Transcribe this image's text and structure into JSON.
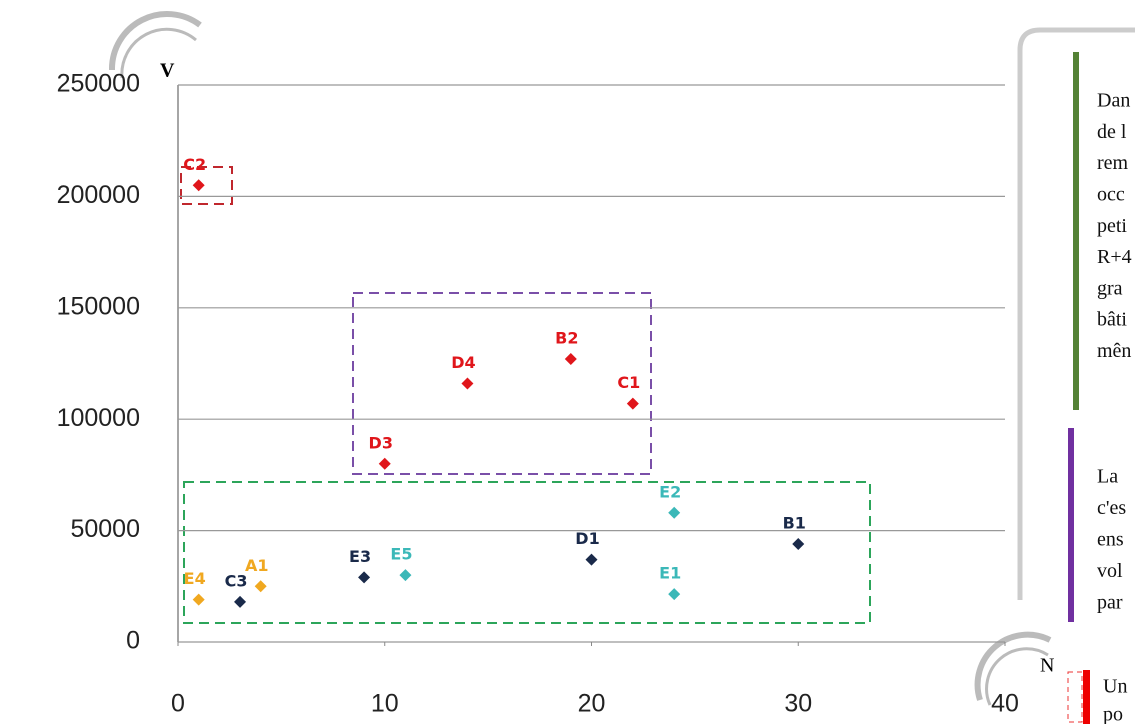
{
  "chart_data": {
    "type": "scatter",
    "x_label": "N",
    "y_label": "V",
    "point_labels": [
      "C2",
      "B2",
      "C1",
      "D4",
      "D3",
      "E2",
      "B1",
      "D1",
      "E5",
      "E3",
      "E1",
      "A1",
      "C3",
      "E4"
    ],
    "x": [
      1,
      19,
      22,
      14,
      10,
      24,
      30,
      20,
      11,
      9,
      24,
      4,
      3,
      1
    ],
    "values": [
      205000,
      127000,
      107000,
      116000,
      80000,
      58000,
      44000,
      37000,
      30000,
      29000,
      21500,
      25000,
      18000,
      19000
    ],
    "colors": [
      "#e0161b",
      "#e0161b",
      "#e0161b",
      "#e0161b",
      "#e0161b",
      "#3bb8b8",
      "#1a2a4a",
      "#1a2a4a",
      "#3bb8b8",
      "#1a2a4a",
      "#3bb8b8",
      "#f0a820",
      "#1a2a4a",
      "#f0a820"
    ],
    "xlim": [
      0,
      40
    ],
    "xticks": [
      0,
      10,
      20,
      30,
      40
    ],
    "ylim": [
      0,
      250000
    ],
    "yticks": [
      0,
      50000,
      100000,
      150000,
      200000,
      250000
    ],
    "grid": true
  },
  "notes": [
    {
      "lines": [
        "Dan",
        "de l",
        "rem",
        "occ",
        "peti",
        "R+4",
        "gra",
        "bâti",
        "mên"
      ]
    },
    {
      "lines": [
        "La",
        "c'es",
        "ens",
        "vol",
        "par"
      ]
    },
    {
      "lines": [
        "Un",
        "po"
      ]
    }
  ]
}
